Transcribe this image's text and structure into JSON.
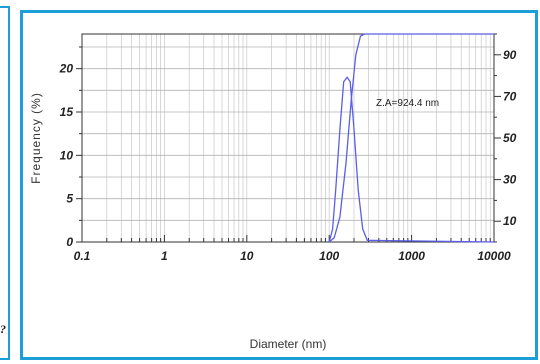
{
  "left_panel": {
    "mark": "?"
  },
  "chart_data": {
    "type": "line",
    "xlabel": "Diameter (nm)",
    "ylabel": "Frequency (%)",
    "x_scale": "log",
    "xlim": [
      0.1,
      10000
    ],
    "ylim": [
      0,
      24
    ],
    "y2lim": [
      0,
      100
    ],
    "grid": true,
    "x_tick_labels": [
      "0.1",
      "1",
      "10",
      "100",
      "1000",
      "10000"
    ],
    "y_tick_labels": [
      "0",
      "5",
      "10",
      "15",
      "20"
    ],
    "y2_tick_labels": [
      "10",
      "30",
      "50",
      "70",
      "90"
    ],
    "annotation": "Z.A=924.4 nm",
    "series": [
      {
        "axis": "left",
        "points": [
          [
            100,
            0
          ],
          [
            110,
            1.5
          ],
          [
            120,
            6
          ],
          [
            135,
            13
          ],
          [
            150,
            18.5
          ],
          [
            165,
            19
          ],
          [
            180,
            18.5
          ],
          [
            200,
            13
          ],
          [
            225,
            6
          ],
          [
            255,
            1.5
          ],
          [
            290,
            0.2
          ],
          [
            10000,
            0
          ]
        ]
      },
      {
        "axis": "right",
        "points": [
          [
            100,
            0
          ],
          [
            115,
            2
          ],
          [
            135,
            12
          ],
          [
            160,
            38
          ],
          [
            185,
            68
          ],
          [
            210,
            90
          ],
          [
            240,
            99
          ],
          [
            270,
            100
          ],
          [
            10000,
            100
          ]
        ]
      }
    ]
  }
}
